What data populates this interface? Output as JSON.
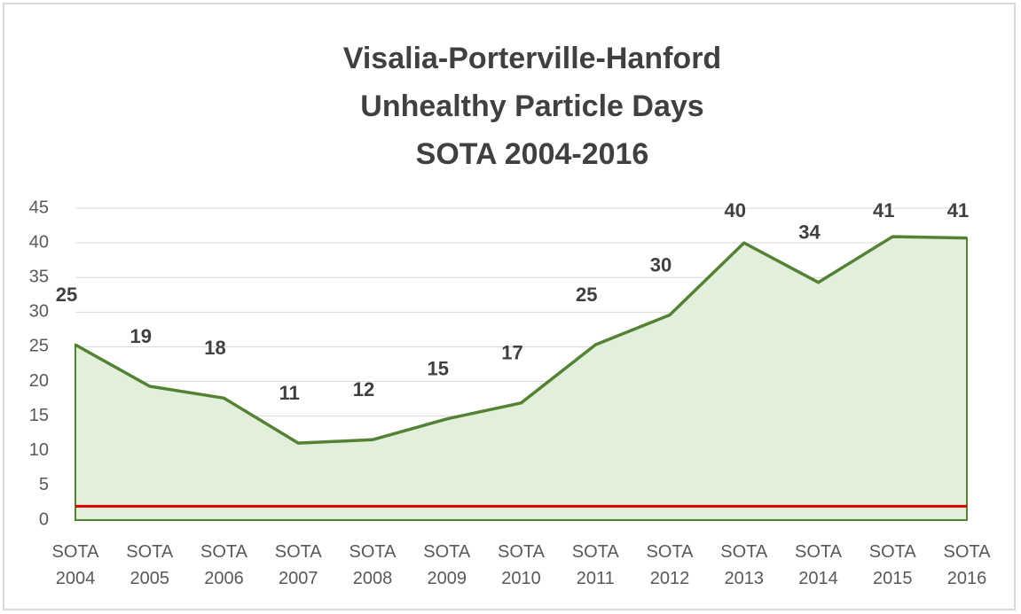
{
  "chart_data": {
    "type": "area",
    "title": [
      "Visalia-Porterville-Hanford",
      "Unhealthy Particle Days",
      "SOTA 2004-2016"
    ],
    "categories": [
      "SOTA 2004",
      "SOTA 2005",
      "SOTA 2006",
      "SOTA 2007",
      "SOTA 2008",
      "SOTA 2009",
      "SOTA 2010",
      "SOTA 2011",
      "SOTA 2012",
      "SOTA 2013",
      "SOTA 2014",
      "SOTA 2015",
      "SOTA 2016"
    ],
    "values": [
      25.3,
      19.3,
      17.6,
      11.1,
      11.6,
      14.6,
      16.9,
      25.3,
      29.6,
      40,
      34.3,
      40.9,
      40.7
    ],
    "value_labels": [
      "25",
      "19",
      "18",
      "11",
      "12",
      "15",
      "17",
      "25",
      "30",
      "40",
      "34",
      "41",
      "41"
    ],
    "color": "#548235",
    "fill": "#e2efda",
    "reference_line": {
      "value": 2,
      "color": "#e00000"
    },
    "ylim": [
      0,
      45
    ],
    "yticks": [
      0,
      5,
      10,
      15,
      20,
      25,
      30,
      35,
      40,
      45
    ],
    "grid": true
  }
}
